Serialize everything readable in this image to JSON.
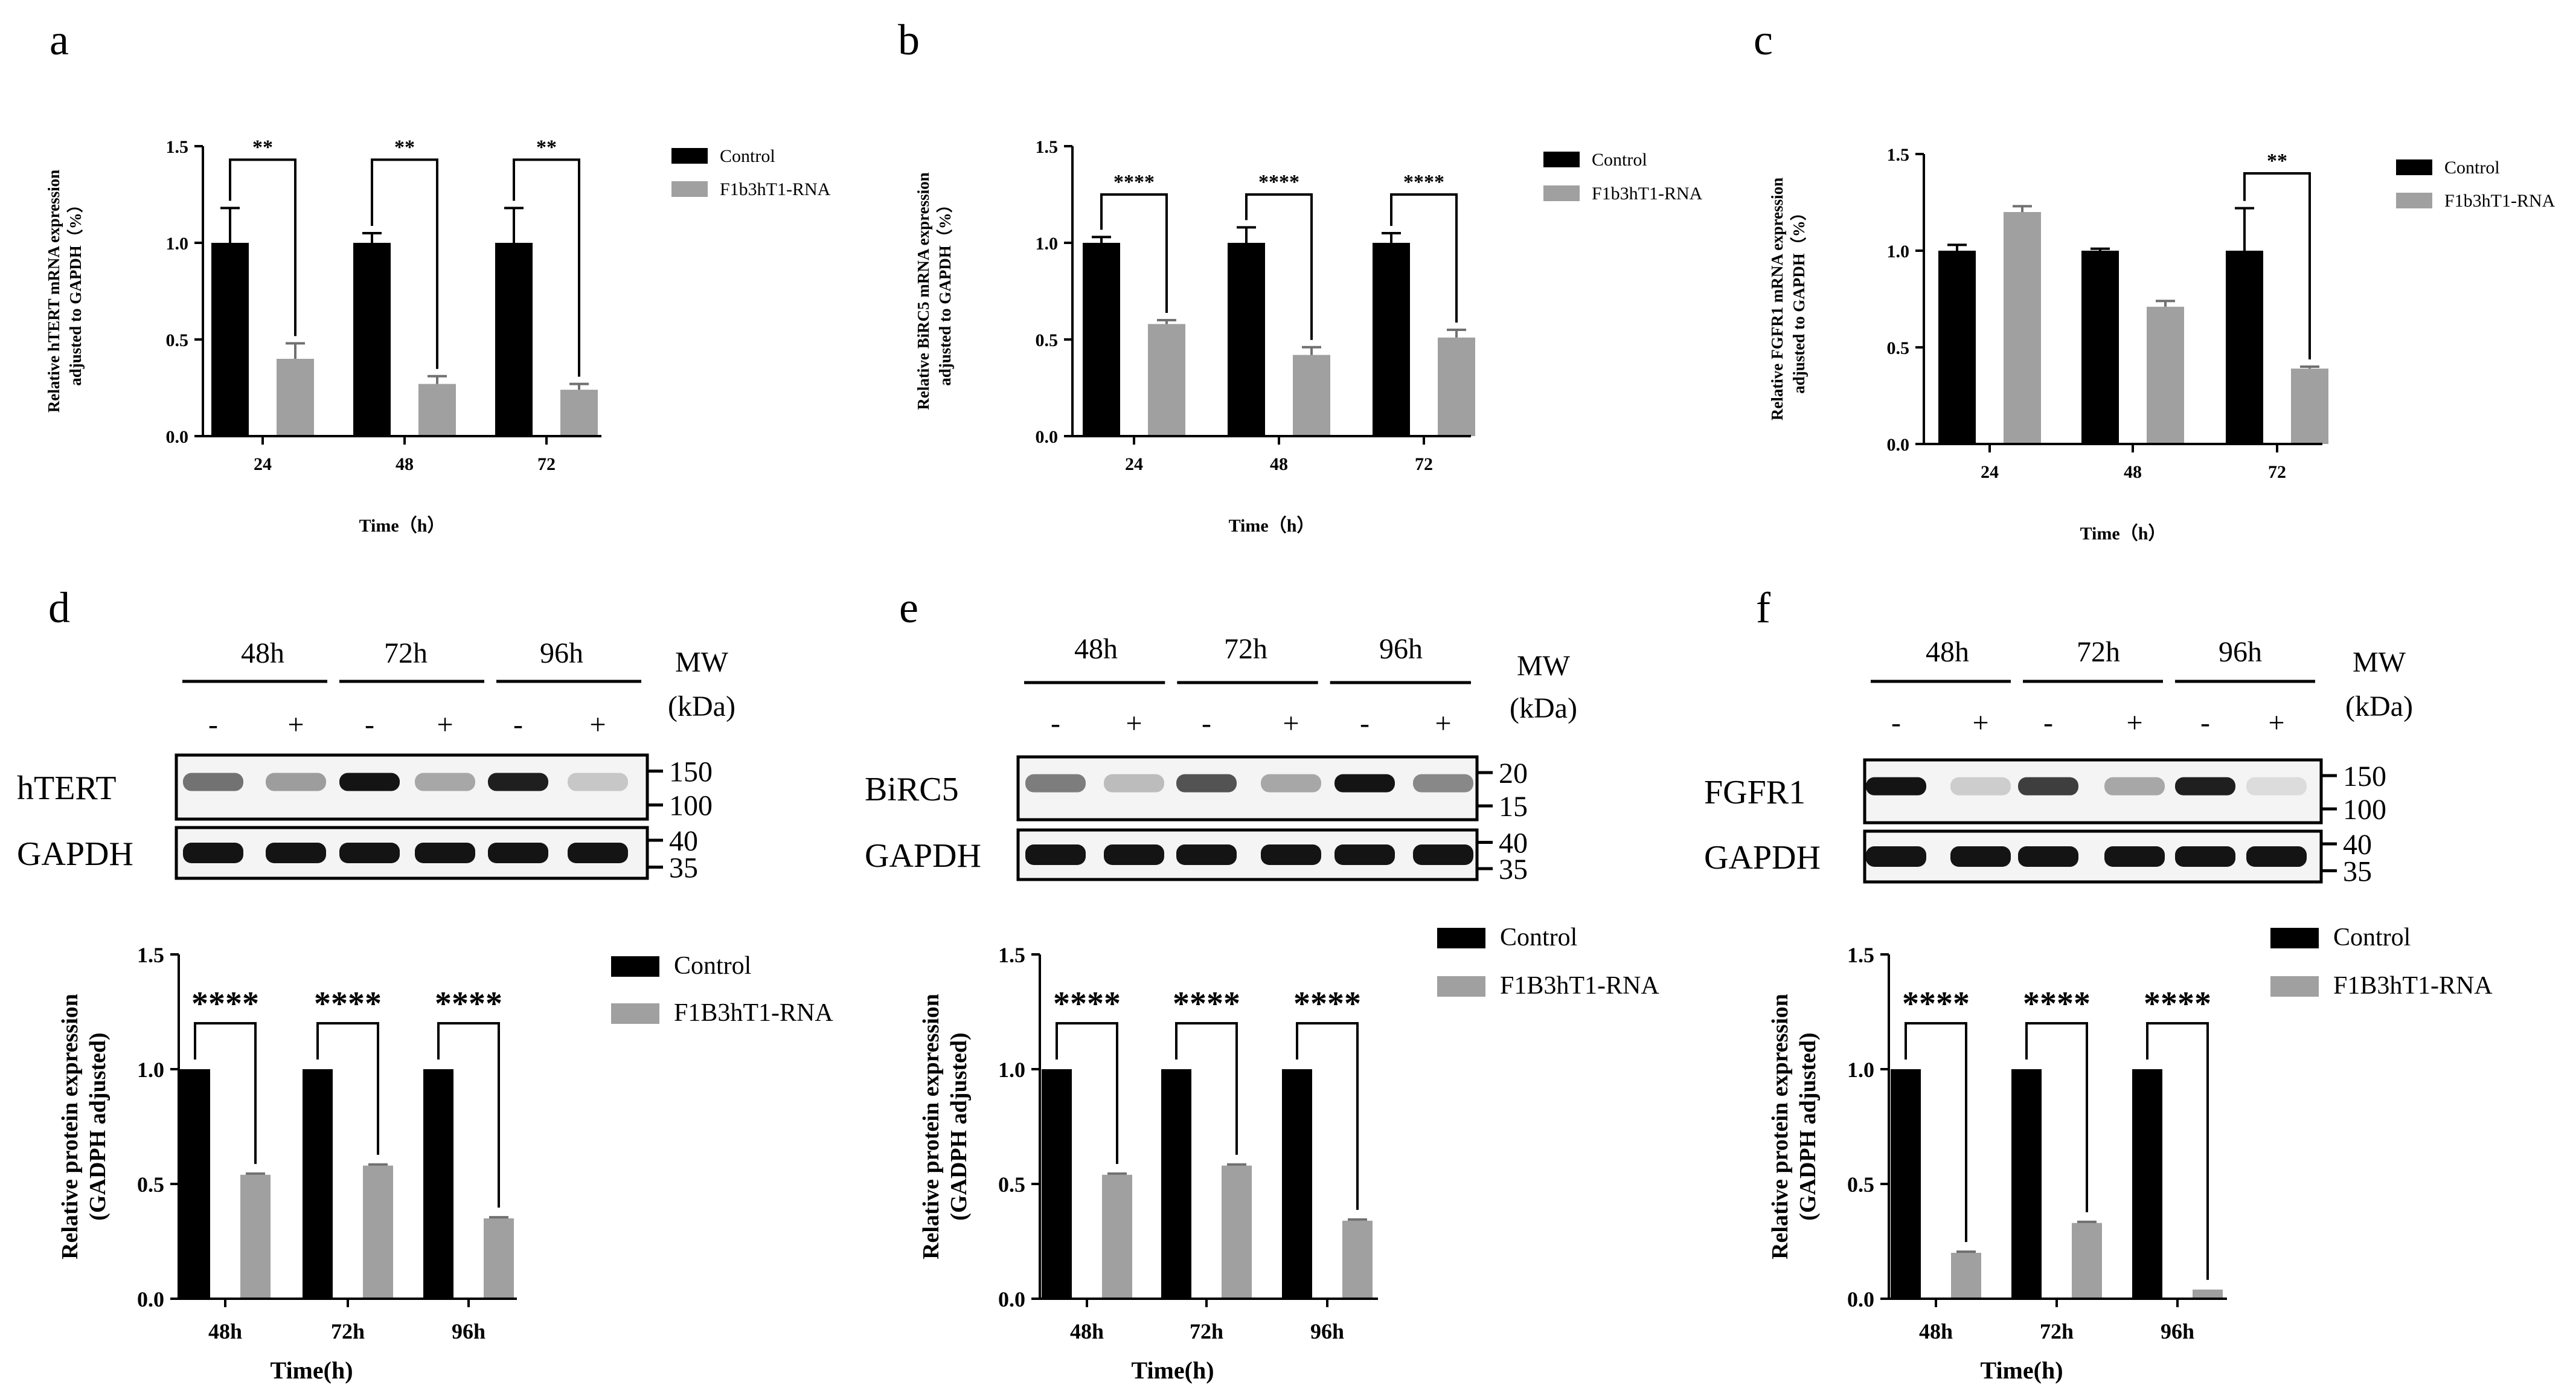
{
  "colors": {
    "control": "#000000",
    "treated": "#a0a0a0",
    "axis": "#000000"
  },
  "chart_data": [
    {
      "panel": "a",
      "type": "bar",
      "ylabel": [
        "Relative hTERT mRNA expression",
        "adjusted to GAPDH（%）"
      ],
      "xlabel": "Time（h）",
      "categories": [
        "24",
        "48",
        "72"
      ],
      "ylim": [
        0,
        1.5
      ],
      "yticks": [
        "0.0",
        "0.5",
        "1.0",
        "1.5"
      ],
      "series": [
        {
          "name": "Control",
          "values": [
            1.0,
            1.0,
            1.0
          ],
          "errors": [
            0.18,
            0.05,
            0.18
          ]
        },
        {
          "name": "F1b3hT1-RNA",
          "values": [
            0.4,
            0.27,
            0.24
          ],
          "errors": [
            0.08,
            0.04,
            0.03
          ]
        }
      ],
      "significance": [
        "**",
        "**",
        "**"
      ],
      "sig_top": [
        1.43,
        1.43,
        1.43
      ]
    },
    {
      "panel": "b",
      "type": "bar",
      "ylabel": [
        "Relative BiRC5 mRNA expression",
        "adjusted to GAPDH（%）"
      ],
      "xlabel": "Time（h）",
      "categories": [
        "24",
        "48",
        "72"
      ],
      "ylim": [
        0,
        1.5
      ],
      "yticks": [
        "0.0",
        "0.5",
        "1.0",
        "1.5"
      ],
      "series": [
        {
          "name": "Control",
          "values": [
            1.0,
            1.0,
            1.0
          ],
          "errors": [
            0.03,
            0.08,
            0.05
          ]
        },
        {
          "name": "F1b3hT1-RNA",
          "values": [
            0.58,
            0.42,
            0.51
          ],
          "errors": [
            0.02,
            0.04,
            0.04
          ]
        }
      ],
      "significance": [
        "****",
        "****",
        "****"
      ],
      "sig_top": [
        1.25,
        1.25,
        1.25
      ]
    },
    {
      "panel": "c",
      "type": "bar",
      "ylabel": [
        "Relative FGFR1 mRNA expression",
        "adjusted to GAPDH（%）"
      ],
      "xlabel": "Time（h）",
      "categories": [
        "24",
        "48",
        "72"
      ],
      "ylim": [
        0,
        1.5
      ],
      "yticks": [
        "0.0",
        "0.5",
        "1.0",
        "1.5"
      ],
      "series": [
        {
          "name": "Control",
          "values": [
            1.0,
            1.0,
            1.0
          ],
          "errors": [
            0.03,
            0.01,
            0.22
          ]
        },
        {
          "name": "F1b3hT1-RNA",
          "values": [
            1.2,
            0.71,
            0.39
          ],
          "errors": [
            0.03,
            0.03,
            0.01
          ]
        }
      ],
      "significance": [
        "",
        "",
        "**"
      ],
      "sig_top": [
        null,
        null,
        1.4
      ]
    },
    {
      "panel": "d",
      "type": "bar",
      "ylabel": [
        "Relative protein expression",
        "(GADPH adjusted)"
      ],
      "xlabel": "Time(h)",
      "categories": [
        "48h",
        "72h",
        "96h"
      ],
      "ylim": [
        0,
        1.5
      ],
      "yticks": [
        "0.0",
        "0.5",
        "1.0",
        "1.5"
      ],
      "series": [
        {
          "name": "Control",
          "values": [
            1.0,
            1.0,
            1.0
          ],
          "errors": [
            0,
            0,
            0
          ]
        },
        {
          "name": "F1B3hT1-RNA",
          "values": [
            0.54,
            0.58,
            0.35
          ],
          "errors": [
            0.005,
            0.005,
            0.005
          ]
        }
      ],
      "significance": [
        "****",
        "****",
        "****"
      ],
      "sig_top": [
        1.2,
        1.2,
        1.2
      ]
    },
    {
      "panel": "e",
      "type": "bar",
      "ylabel": [
        "Relative protein expression",
        "(GADPH adjusted)"
      ],
      "xlabel": "Time(h)",
      "categories": [
        "48h",
        "72h",
        "96h"
      ],
      "ylim": [
        0,
        1.5
      ],
      "yticks": [
        "0.0",
        "0.5",
        "1.0",
        "1.5"
      ],
      "series": [
        {
          "name": "Control",
          "values": [
            1.0,
            1.0,
            1.0
          ],
          "errors": [
            0,
            0,
            0
          ]
        },
        {
          "name": "F1B3hT1-RNA",
          "values": [
            0.54,
            0.58,
            0.34
          ],
          "errors": [
            0.005,
            0.005,
            0.005
          ]
        }
      ],
      "significance": [
        "****",
        "****",
        "****"
      ],
      "sig_top": [
        1.2,
        1.2,
        1.2
      ]
    },
    {
      "panel": "f",
      "type": "bar",
      "ylabel": [
        "Relative protein expression",
        "(GADPH adjusted)"
      ],
      "xlabel": "Time(h)",
      "categories": [
        "48h",
        "72h",
        "96h"
      ],
      "ylim": [
        0,
        1.5
      ],
      "yticks": [
        "0.0",
        "0.5",
        "1.0",
        "1.5"
      ],
      "series": [
        {
          "name": "Control",
          "values": [
            1.0,
            1.0,
            1.0
          ],
          "errors": [
            0,
            0,
            0
          ]
        },
        {
          "name": "F1B3hT1-RNA",
          "values": [
            0.2,
            0.33,
            0.04
          ],
          "errors": [
            0.005,
            0.005,
            0
          ]
        }
      ],
      "significance": [
        "****",
        "****",
        "****"
      ],
      "sig_top": [
        1.2,
        1.2,
        1.2
      ]
    }
  ],
  "blots": [
    {
      "panel": "d",
      "times": [
        "48h",
        "72h",
        "96h"
      ],
      "lanes": [
        "-",
        "+",
        "-",
        "+",
        "-",
        "+"
      ],
      "mw_title": [
        "MW",
        "(kDa)"
      ],
      "rows": [
        {
          "protein": "hTERT",
          "markers": [
            "150",
            "100"
          ],
          "intensities": [
            0.55,
            0.35,
            1.0,
            0.3,
            0.95,
            0.15
          ]
        },
        {
          "protein": "GAPDH",
          "markers": [
            "40",
            "35"
          ],
          "intensities": [
            1,
            1,
            1,
            1,
            1,
            1
          ]
        }
      ]
    },
    {
      "panel": "e",
      "times": [
        "48h",
        "72h",
        "96h"
      ],
      "lanes": [
        "-",
        "+",
        "-",
        "+",
        "-",
        "+"
      ],
      "mw_title": [
        "MW",
        "(kDa)"
      ],
      "rows": [
        {
          "protein": "BiRC5",
          "markers": [
            "20",
            "15"
          ],
          "intensities": [
            0.5,
            0.2,
            0.7,
            0.3,
            1.0,
            0.45
          ]
        },
        {
          "protein": "GAPDH",
          "markers": [
            "40",
            "35"
          ],
          "intensities": [
            1,
            1,
            1,
            1,
            1,
            1
          ]
        }
      ]
    },
    {
      "panel": "f",
      "times": [
        "48h",
        "72h",
        "96h"
      ],
      "lanes": [
        "-",
        "+",
        "-",
        "+",
        "-",
        "+"
      ],
      "mw_title": [
        "MW",
        "(kDa)"
      ],
      "rows": [
        {
          "protein": "FGFR1",
          "markers": [
            "150",
            "100"
          ],
          "intensities": [
            1.0,
            0.12,
            0.8,
            0.3,
            0.95,
            0.05
          ]
        },
        {
          "protein": "GAPDH",
          "markers": [
            "40",
            "35"
          ],
          "intensities": [
            1,
            1,
            1,
            1,
            1,
            1
          ]
        }
      ]
    }
  ]
}
